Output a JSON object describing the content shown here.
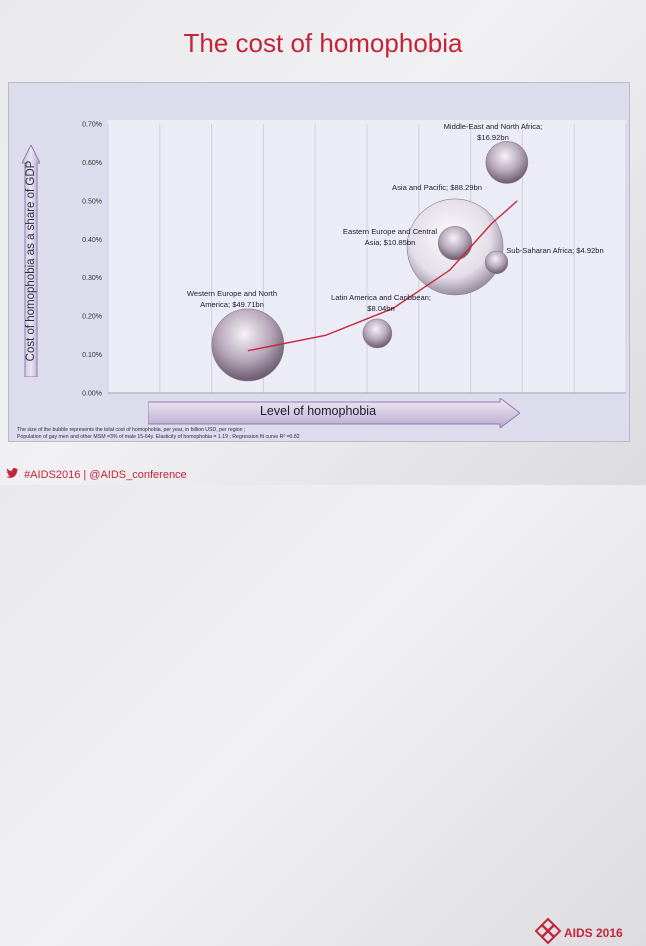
{
  "slide": {
    "title": "The cost of homophobia",
    "y_axis_label": "Cost of homophobia as a share of GDP",
    "x_axis_label": "Level of homophobia",
    "footnote_line1": "The size of the bubble represents the total cost of  homophobia,  per year, in  billion USD,  per region ;",
    "footnote_line2": "Population of gay men and other MSM =3% of male 15-64y. Elasticity of homophobia = 1.19 ; Regression  fit curve R² =0.82",
    "footer_hashtags": "#AIDS2016 | @AIDS_conference",
    "logo_text": "AIDS 2016"
  },
  "colors": {
    "title": "#c4243a",
    "bubble": "#a697a8",
    "trend": "#c8283e",
    "arrow": "#8f7cb0"
  },
  "chart_data": {
    "type": "scatter",
    "bubble": true,
    "ylim": [
      0,
      0.7
    ],
    "y_unit": "%",
    "y_ticks": [
      "0.00%",
      "0.10%",
      "0.20%",
      "0.30%",
      "0.40%",
      "0.50%",
      "0.60%",
      "0.70%"
    ],
    "x_ticks_labeled": false,
    "xlim": [
      0,
      10
    ],
    "grid": "vertical",
    "points": [
      {
        "label": "Western Europe and North America; $49.71bn",
        "x": 2.7,
        "y": 0.125,
        "size": 49.71
      },
      {
        "label": "Latin America and Caribbean; $8.04bn",
        "x": 5.2,
        "y": 0.155,
        "size": 8.04
      },
      {
        "label": "Asia and Pacific; $88.29bn",
        "x": 6.7,
        "y": 0.38,
        "size": 88.29
      },
      {
        "label": "Eastern Europe and Central Asia; $10.85bn",
        "x": 6.7,
        "y": 0.39,
        "size": 10.85
      },
      {
        "label": "Sub-Saharan Africa; $4.92bn",
        "x": 7.5,
        "y": 0.34,
        "size": 4.92
      },
      {
        "label": "Middle-East and North Africa; $16.92bn",
        "x": 7.7,
        "y": 0.6,
        "size": 16.92
      }
    ],
    "label_lines": {
      "Western Europe and North America; $49.71bn": [
        "Western Europe and North",
        "America;  $49.71bn"
      ],
      "Latin America and Caribbean; $8.04bn": [
        "Latin America and Caribbean;",
        "$8.04bn"
      ],
      "Asia and Pacific; $88.29bn": [
        "Asia and Pacific;  $88.29bn"
      ],
      "Eastern Europe and Central Asia; $10.85bn": [
        "Eastern Europe and Central",
        "Asia;  $10.85bn"
      ],
      "Sub-Saharan Africa; $4.92bn": [
        "Sub-Saharan Africa;  $4.92bn"
      ],
      "Middle-East and North Africa; $16.92bn": [
        "Middle-East and North Africa;",
        "$16.92bn"
      ]
    },
    "trendline": {
      "type": "exponential",
      "points": [
        [
          2.7,
          0.11
        ],
        [
          4.2,
          0.15
        ],
        [
          5.5,
          0.22
        ],
        [
          6.6,
          0.32
        ],
        [
          7.4,
          0.44
        ],
        [
          7.9,
          0.5
        ]
      ]
    }
  }
}
